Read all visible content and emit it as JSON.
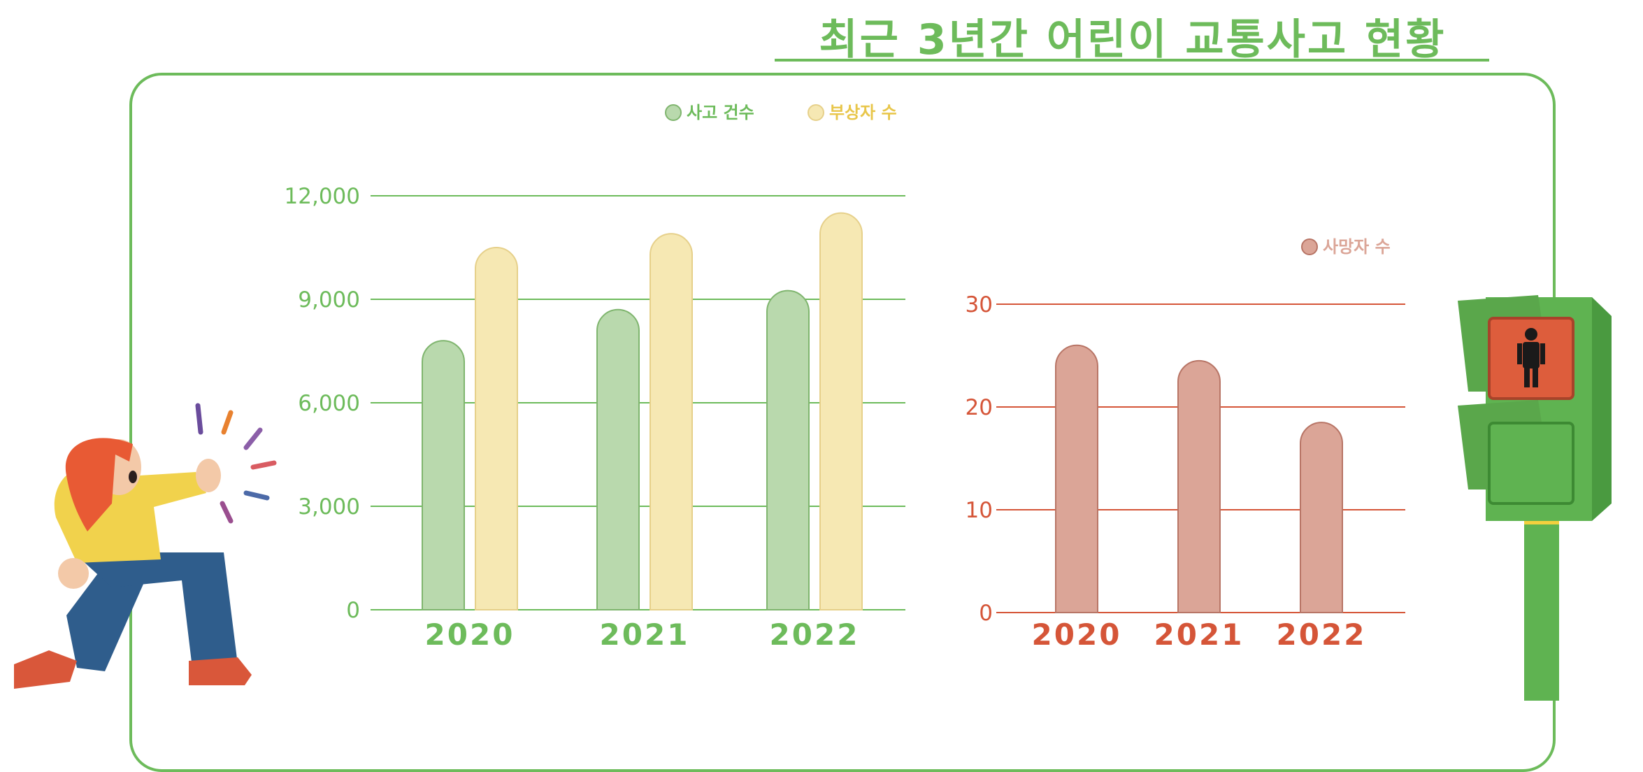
{
  "title": "최근 3년간 어린이 교통사고 현황",
  "colors": {
    "accident": "#b9d9ad",
    "injured": "#f6e8b3",
    "death": "#dba597",
    "green_text": "#6dbb5b",
    "red_text": "#d55538",
    "injured_text": "#e8c64a",
    "death_legend_text": "#dba597"
  },
  "chart_data": [
    {
      "type": "bar",
      "categories": [
        "2020",
        "2021",
        "2022"
      ],
      "series": [
        {
          "name": "사고 건수",
          "values": [
            7800,
            8700,
            9250
          ]
        },
        {
          "name": "부상자 수",
          "values": [
            10500,
            10900,
            11500
          ]
        }
      ],
      "ylim": [
        0,
        12000
      ],
      "yticks": [
        "0",
        "3,000",
        "6,000",
        "9,000",
        "12,000"
      ],
      "grid": true,
      "legend": "top-center"
    },
    {
      "type": "bar",
      "categories": [
        "2020",
        "2021",
        "2022"
      ],
      "series": [
        {
          "name": "사망자 수",
          "values": [
            26,
            24.5,
            18.5
          ]
        }
      ],
      "ylim": [
        0,
        30
      ],
      "yticks": [
        "0",
        "10",
        "20",
        "30"
      ],
      "grid": true,
      "legend": "top-right"
    }
  ]
}
